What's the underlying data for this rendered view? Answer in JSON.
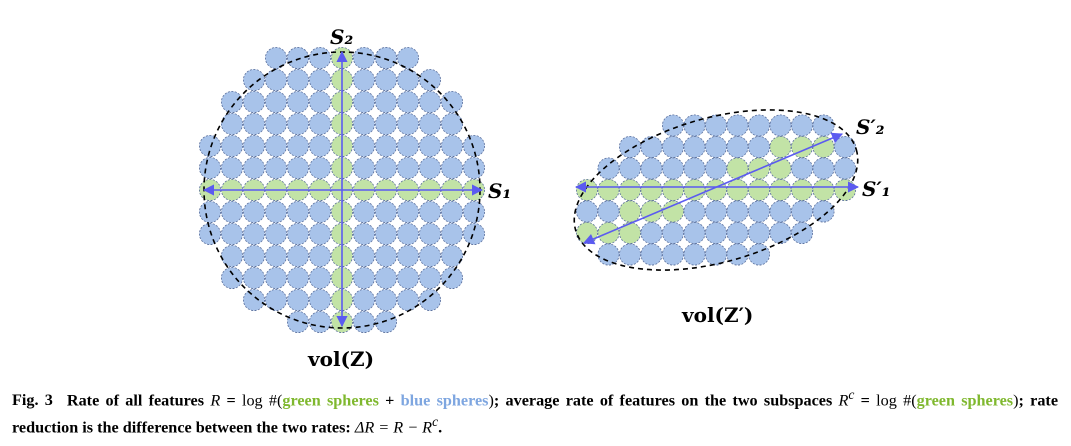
{
  "figure": {
    "left": {
      "axis_label_x": "S₁",
      "axis_label_y": "S₂",
      "volume_label": "vol(Z)"
    },
    "right": {
      "axis_label_1": "S′₁",
      "axis_label_2": "S′₂",
      "volume_label": "vol(Z′)"
    },
    "colors": {
      "blue_sphere": "#a8c3ea",
      "green_sphere": "#c2e3a6",
      "sphere_outline": "#5a6f9c",
      "axis_arrow": "#5b5bf0",
      "ellipse_outline": "#000000",
      "caption_green": "#7fb82e",
      "caption_blue": "#7ea6e0"
    }
  },
  "caption": {
    "fig_label": "Fig. 3",
    "p1": "Rate of all features ",
    "m1": "R",
    "p2": " = ",
    "m2": "log #(",
    "green1": "green spheres",
    "p3": " + ",
    "blue1": "blue spheres",
    "m3": ")",
    "p4": "; average rate of features on the two subspaces ",
    "m4": "R",
    "sup1": "c",
    "p5": " = ",
    "m5": "log #(",
    "green2": "green spheres",
    "m6": ")",
    "p6": "; rate reduction is the difference between the two rates: ",
    "m7": "ΔR = R − R",
    "sup2": "c",
    "p7": "."
  }
}
